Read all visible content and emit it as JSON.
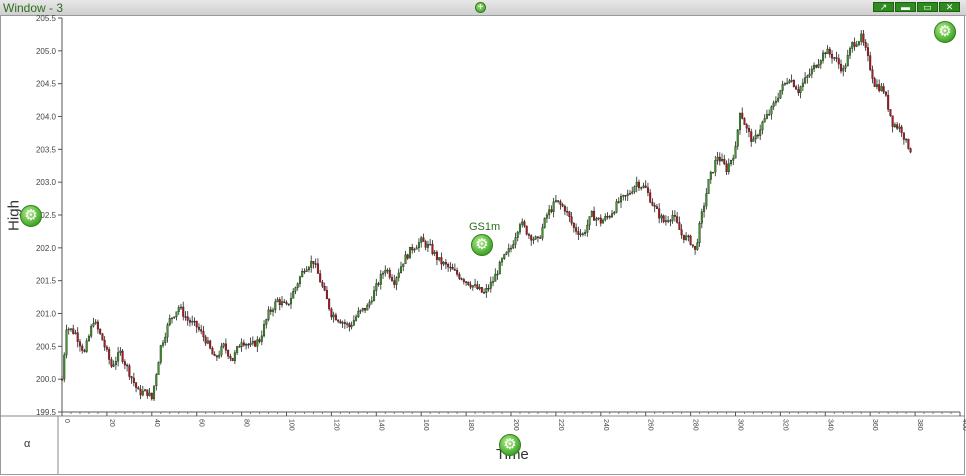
{
  "window": {
    "title": "Window - 3",
    "add_icon": "plus-circle-icon",
    "buttons": [
      "pin-icon",
      "minimize-icon",
      "maximize-icon",
      "close-icon"
    ]
  },
  "panel": {
    "alpha_label": "α"
  },
  "chart_data": {
    "type": "candlestick",
    "series_label": "GS1m",
    "xlabel": "Time",
    "ylabel": "High",
    "xlim": [
      0,
      400
    ],
    "ylim": [
      199.5,
      205.5
    ],
    "x_ticks": [
      0,
      20,
      40,
      60,
      80,
      100,
      120,
      140,
      160,
      180,
      200,
      220,
      240,
      260,
      280,
      300,
      320,
      340,
      360,
      380,
      400
    ],
    "y_ticks": [
      199.5,
      200.0,
      200.5,
      201.0,
      201.5,
      202.0,
      202.5,
      203.0,
      203.5,
      204.0,
      204.5,
      205.0,
      205.5
    ],
    "y_tick_labels": [
      "199.5",
      "200.0",
      "200.5",
      "201.0",
      "201.5",
      "202.0",
      "202.5",
      "203.0",
      "203.5",
      "204.0",
      "204.5",
      "205.0",
      "205.5"
    ],
    "anchors": [
      [
        0,
        200.0
      ],
      [
        2,
        200.8
      ],
      [
        6,
        200.7
      ],
      [
        10,
        200.4
      ],
      [
        14,
        200.9
      ],
      [
        18,
        200.6
      ],
      [
        22,
        200.2
      ],
      [
        26,
        200.4
      ],
      [
        30,
        200.1
      ],
      [
        34,
        199.8
      ],
      [
        38,
        199.8
      ],
      [
        40,
        199.7
      ],
      [
        44,
        200.5
      ],
      [
        48,
        200.9
      ],
      [
        52,
        201.1
      ],
      [
        56,
        200.9
      ],
      [
        60,
        200.8
      ],
      [
        64,
        200.6
      ],
      [
        68,
        200.3
      ],
      [
        72,
        200.5
      ],
      [
        76,
        200.3
      ],
      [
        80,
        200.6
      ],
      [
        84,
        200.5
      ],
      [
        88,
        200.6
      ],
      [
        92,
        201.0
      ],
      [
        96,
        201.2
      ],
      [
        100,
        201.1
      ],
      [
        104,
        201.4
      ],
      [
        108,
        201.7
      ],
      [
        112,
        201.8
      ],
      [
        116,
        201.4
      ],
      [
        120,
        201.0
      ],
      [
        124,
        200.9
      ],
      [
        128,
        200.8
      ],
      [
        132,
        201.0
      ],
      [
        136,
        201.1
      ],
      [
        140,
        201.4
      ],
      [
        144,
        201.7
      ],
      [
        148,
        201.5
      ],
      [
        152,
        201.8
      ],
      [
        156,
        202.0
      ],
      [
        160,
        202.1
      ],
      [
        164,
        202.0
      ],
      [
        168,
        201.8
      ],
      [
        172,
        201.7
      ],
      [
        176,
        201.6
      ],
      [
        180,
        201.5
      ],
      [
        184,
        201.4
      ],
      [
        188,
        201.3
      ],
      [
        192,
        201.5
      ],
      [
        196,
        201.8
      ],
      [
        200,
        202.0
      ],
      [
        204,
        202.4
      ],
      [
        208,
        202.2
      ],
      [
        212,
        202.1
      ],
      [
        216,
        202.5
      ],
      [
        220,
        202.7
      ],
      [
        224,
        202.6
      ],
      [
        228,
        202.3
      ],
      [
        232,
        202.2
      ],
      [
        236,
        202.5
      ],
      [
        240,
        202.4
      ],
      [
        244,
        202.5
      ],
      [
        248,
        202.7
      ],
      [
        252,
        202.8
      ],
      [
        256,
        203.0
      ],
      [
        260,
        202.9
      ],
      [
        264,
        202.6
      ],
      [
        268,
        202.4
      ],
      [
        272,
        202.5
      ],
      [
        276,
        202.2
      ],
      [
        280,
        202.1
      ],
      [
        282,
        201.95
      ],
      [
        285,
        202.5
      ],
      [
        288,
        203.0
      ],
      [
        292,
        203.4
      ],
      [
        296,
        203.2
      ],
      [
        300,
        203.5
      ],
      [
        302,
        204.1
      ],
      [
        305,
        203.8
      ],
      [
        308,
        203.6
      ],
      [
        312,
        203.9
      ],
      [
        316,
        204.1
      ],
      [
        320,
        204.4
      ],
      [
        324,
        204.6
      ],
      [
        328,
        204.4
      ],
      [
        332,
        204.6
      ],
      [
        336,
        204.8
      ],
      [
        340,
        205.0
      ],
      [
        344,
        204.9
      ],
      [
        348,
        204.7
      ],
      [
        352,
        205.1
      ],
      [
        356,
        205.2
      ],
      [
        358,
        205.0
      ],
      [
        362,
        204.5
      ],
      [
        366,
        204.4
      ],
      [
        370,
        203.9
      ],
      [
        374,
        203.8
      ],
      [
        376,
        203.6
      ],
      [
        378,
        203.5
      ]
    ]
  }
}
